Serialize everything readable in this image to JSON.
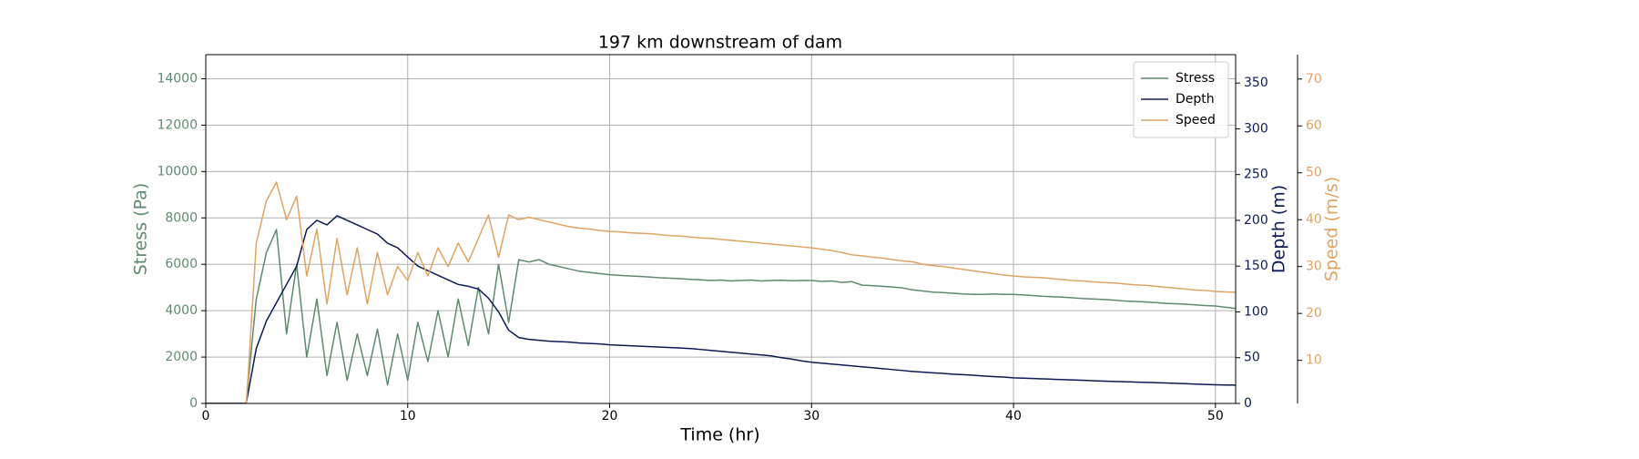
{
  "chart_data": {
    "type": "line",
    "title": "197 km downstream of dam",
    "xlabel": "Time (hr)",
    "ylabel": "Stress (Pa)",
    "y2label": "Depth (m)",
    "y3label": "Speed (m/s)",
    "x": [
      0,
      0.5,
      1,
      1.5,
      2,
      2.5,
      3,
      3.5,
      4,
      4.5,
      5,
      5.5,
      6,
      6.5,
      7,
      7.5,
      8,
      8.5,
      9,
      9.5,
      10,
      10.5,
      11,
      11.5,
      12,
      12.5,
      13,
      13.5,
      14,
      14.5,
      15,
      15.5,
      16,
      16.5,
      17,
      17.5,
      18,
      18.5,
      19,
      19.5,
      20,
      20.5,
      21,
      21.5,
      22,
      22.5,
      23,
      23.5,
      24,
      24.5,
      25,
      25.5,
      26,
      26.5,
      27,
      27.5,
      28,
      28.5,
      29,
      29.5,
      30,
      30.5,
      31,
      31.5,
      32,
      32.5,
      33,
      33.5,
      34,
      34.5,
      35,
      35.5,
      36,
      36.5,
      37,
      37.5,
      38,
      38.5,
      39,
      39.5,
      40,
      40.5,
      41,
      41.5,
      42,
      42.5,
      43,
      43.5,
      44,
      44.5,
      45,
      45.5,
      46,
      46.5,
      47,
      47.5,
      48,
      48.5,
      49,
      49.5,
      50,
      50.5,
      51
    ],
    "xlim": [
      0,
      51
    ],
    "xticks": [
      0,
      10,
      20,
      30,
      40,
      50
    ],
    "ylim": [
      0,
      15040
    ],
    "yticks": [
      0,
      2000,
      4000,
      6000,
      8000,
      10000,
      12000,
      14000
    ],
    "y2lim": [
      0,
      381
    ],
    "y2ticks": [
      0,
      50,
      100,
      150,
      200,
      250,
      300,
      350
    ],
    "y3lim": [
      0.8,
      75.2
    ],
    "y3ticks": [
      10,
      20,
      30,
      40,
      50,
      60,
      70
    ],
    "grid": true,
    "legend": "upper right",
    "series": [
      {
        "name": "Stress",
        "color": "#5f8a6f",
        "axis": "y",
        "values": [
          0,
          0,
          0,
          0,
          0,
          4500,
          6500,
          7500,
          3000,
          6000,
          2000,
          4500,
          1200,
          3500,
          1000,
          3000,
          1200,
          3200,
          800,
          3000,
          1000,
          3500,
          1800,
          4000,
          2000,
          4500,
          2500,
          5000,
          3000,
          6000,
          3500,
          6200,
          6100,
          6200,
          6000,
          5900,
          5800,
          5700,
          5650,
          5600,
          5550,
          5520,
          5500,
          5480,
          5450,
          5420,
          5400,
          5380,
          5350,
          5330,
          5300,
          5320,
          5280,
          5300,
          5320,
          5280,
          5300,
          5310,
          5290,
          5300,
          5300,
          5260,
          5280,
          5220,
          5250,
          5100,
          5080,
          5050,
          5020,
          4980,
          4900,
          4850,
          4800,
          4780,
          4750,
          4720,
          4700,
          4700,
          4720,
          4700,
          4700,
          4680,
          4650,
          4620,
          4600,
          4580,
          4550,
          4520,
          4500,
          4480,
          4450,
          4420,
          4400,
          4380,
          4350,
          4320,
          4300,
          4280,
          4250,
          4220,
          4200,
          4150,
          4100
        ]
      },
      {
        "name": "Depth",
        "color": "#0d1b55",
        "axis": "y2",
        "values": [
          0,
          0,
          0,
          0,
          0,
          60,
          90,
          110,
          130,
          150,
          190,
          200,
          195,
          205,
          200,
          195,
          190,
          185,
          175,
          170,
          160,
          150,
          145,
          140,
          135,
          130,
          128,
          125,
          115,
          100,
          80,
          72,
          70,
          69,
          68,
          67.5,
          67,
          66,
          65.5,
          65,
          64,
          63.6,
          63,
          62.5,
          62,
          61.5,
          61,
          60.5,
          60,
          59,
          58,
          57,
          56,
          55,
          54,
          53,
          52,
          50,
          48.5,
          46.5,
          45,
          44,
          43,
          42,
          41,
          40,
          39,
          38,
          37,
          36,
          35,
          34.2,
          33.5,
          32.8,
          32,
          31.5,
          30.8,
          30,
          29.4,
          28.8,
          28,
          27.6,
          27.2,
          26.8,
          26.4,
          26,
          25.6,
          25.2,
          24.8,
          24.4,
          24,
          23.7,
          23.4,
          23,
          22.7,
          22.4,
          22,
          21.6,
          21.2,
          20.8,
          20.4,
          20.2,
          20
        ]
      },
      {
        "name": "Speed",
        "color": "#dfa465",
        "axis": "y3",
        "values": [
          0,
          0,
          0,
          0,
          0,
          35,
          44,
          48,
          40,
          45,
          28,
          38,
          22,
          36,
          24,
          34,
          22,
          33,
          24,
          30,
          27,
          33,
          28,
          34,
          30,
          35,
          31,
          36,
          41,
          32,
          41,
          40,
          40.5,
          40,
          39.5,
          39,
          38.5,
          38.2,
          38,
          37.7,
          37.5,
          37.4,
          37.2,
          37.1,
          37,
          36.8,
          36.6,
          36.5,
          36.3,
          36.1,
          36,
          35.8,
          35.6,
          35.4,
          35.2,
          35,
          34.8,
          34.6,
          34.4,
          34.2,
          34,
          33.7,
          33.4,
          33,
          32.5,
          32.3,
          32,
          31.8,
          31.5,
          31.2,
          31,
          30.5,
          30.2,
          30,
          29.7,
          29.4,
          29.1,
          28.8,
          28.5,
          28.2,
          28,
          27.8,
          27.7,
          27.6,
          27.4,
          27.2,
          27,
          26.9,
          26.7,
          26.6,
          26.5,
          26.3,
          26.1,
          26,
          25.8,
          25.6,
          25.4,
          25.2,
          25,
          24.9,
          24.7,
          24.6,
          24.5
        ]
      }
    ]
  }
}
